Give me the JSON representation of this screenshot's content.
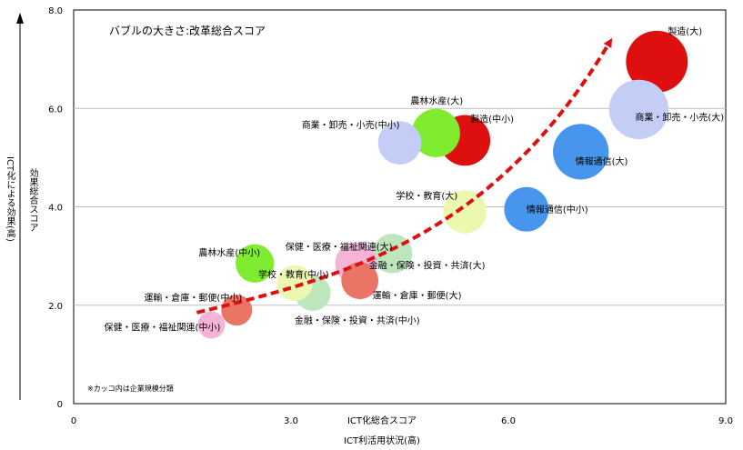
{
  "chart_data": {
    "type": "scatter",
    "subtitle": "バブルの大きさ:改革総合スコア",
    "xlabel": "ICT化総合スコア",
    "xlabel_sub": "ICT利活用状況(高)",
    "ylabel_main": "ICT化による効果(高)",
    "ylabel_sub": "効果総合スコア",
    "note": "※カッコ内は企業規模分類",
    "xlim": [
      0,
      9.0
    ],
    "ylim": [
      0,
      8.0
    ],
    "x_ticks": [
      "0",
      "3.0",
      "6.0",
      "9.0"
    ],
    "y_ticks": [
      "0",
      "2.0",
      "4.0",
      "6.0",
      "8.0"
    ],
    "grid": "horizontal",
    "trend_arrow": true,
    "points": [
      {
        "label": "製造(大)",
        "x": 8.05,
        "y": 6.95,
        "size": 10,
        "color": "#dd0f0f"
      },
      {
        "label": "商業・卸売・小売(大)",
        "x": 7.8,
        "y": 5.98,
        "size": 9.6,
        "color": "#c3cdf5"
      },
      {
        "label": "情報通信(大)",
        "x": 7.0,
        "y": 5.12,
        "size": 9.0,
        "color": "#4795ec"
      },
      {
        "label": "製造(中小)",
        "x": 5.4,
        "y": 5.35,
        "size": 8.2,
        "color": "#dd0f0f"
      },
      {
        "label": "農林水産(大)",
        "x": 5.0,
        "y": 5.5,
        "size": 7.8,
        "color": "#7fec2f"
      },
      {
        "label": "商業・卸売・小売(中小)",
        "x": 4.5,
        "y": 5.3,
        "size": 7.0,
        "color": "#c3cdf5"
      },
      {
        "label": "情報通信(中小)",
        "x": 6.25,
        "y": 3.95,
        "size": 7.2,
        "color": "#4795ec"
      },
      {
        "label": "学校・教育(大)",
        "x": 5.4,
        "y": 3.9,
        "size": 7.0,
        "color": "#ecf7b0"
      },
      {
        "label": "保健・医療・福祉関連(大)",
        "x": 4.4,
        "y": 3.05,
        "size": 6.4,
        "color": "#bde6bc"
      },
      {
        "label": "金融・保険・投資・共済(大)",
        "x": 3.9,
        "y": 2.85,
        "size": 6.8,
        "color": "#f5b3d8"
      },
      {
        "label": "運輸・倉庫・郵便(大)",
        "x": 3.95,
        "y": 2.5,
        "size": 6.0,
        "color": "#e97567"
      },
      {
        "label": "農林水産(中小)",
        "x": 2.5,
        "y": 2.85,
        "size": 6.2,
        "color": "#7fec2f"
      },
      {
        "label": "金融・保険・投資・共済(中小)",
        "x": 3.3,
        "y": 2.25,
        "size": 5.8,
        "color": "#bde6bc"
      },
      {
        "label": "学校・教育(中小)",
        "x": 3.05,
        "y": 2.45,
        "size": 5.8,
        "color": "#ecf7b0"
      },
      {
        "label": "運輸・倉庫・郵便(中小)",
        "x": 2.25,
        "y": 1.9,
        "size": 5.0,
        "color": "#e97567"
      },
      {
        "label": "保健・医療・福祉関連(中小)",
        "x": 1.9,
        "y": 1.6,
        "size": 4.4,
        "color": "#f5b3d8"
      }
    ],
    "arrow_color": "#dd0f0f"
  }
}
